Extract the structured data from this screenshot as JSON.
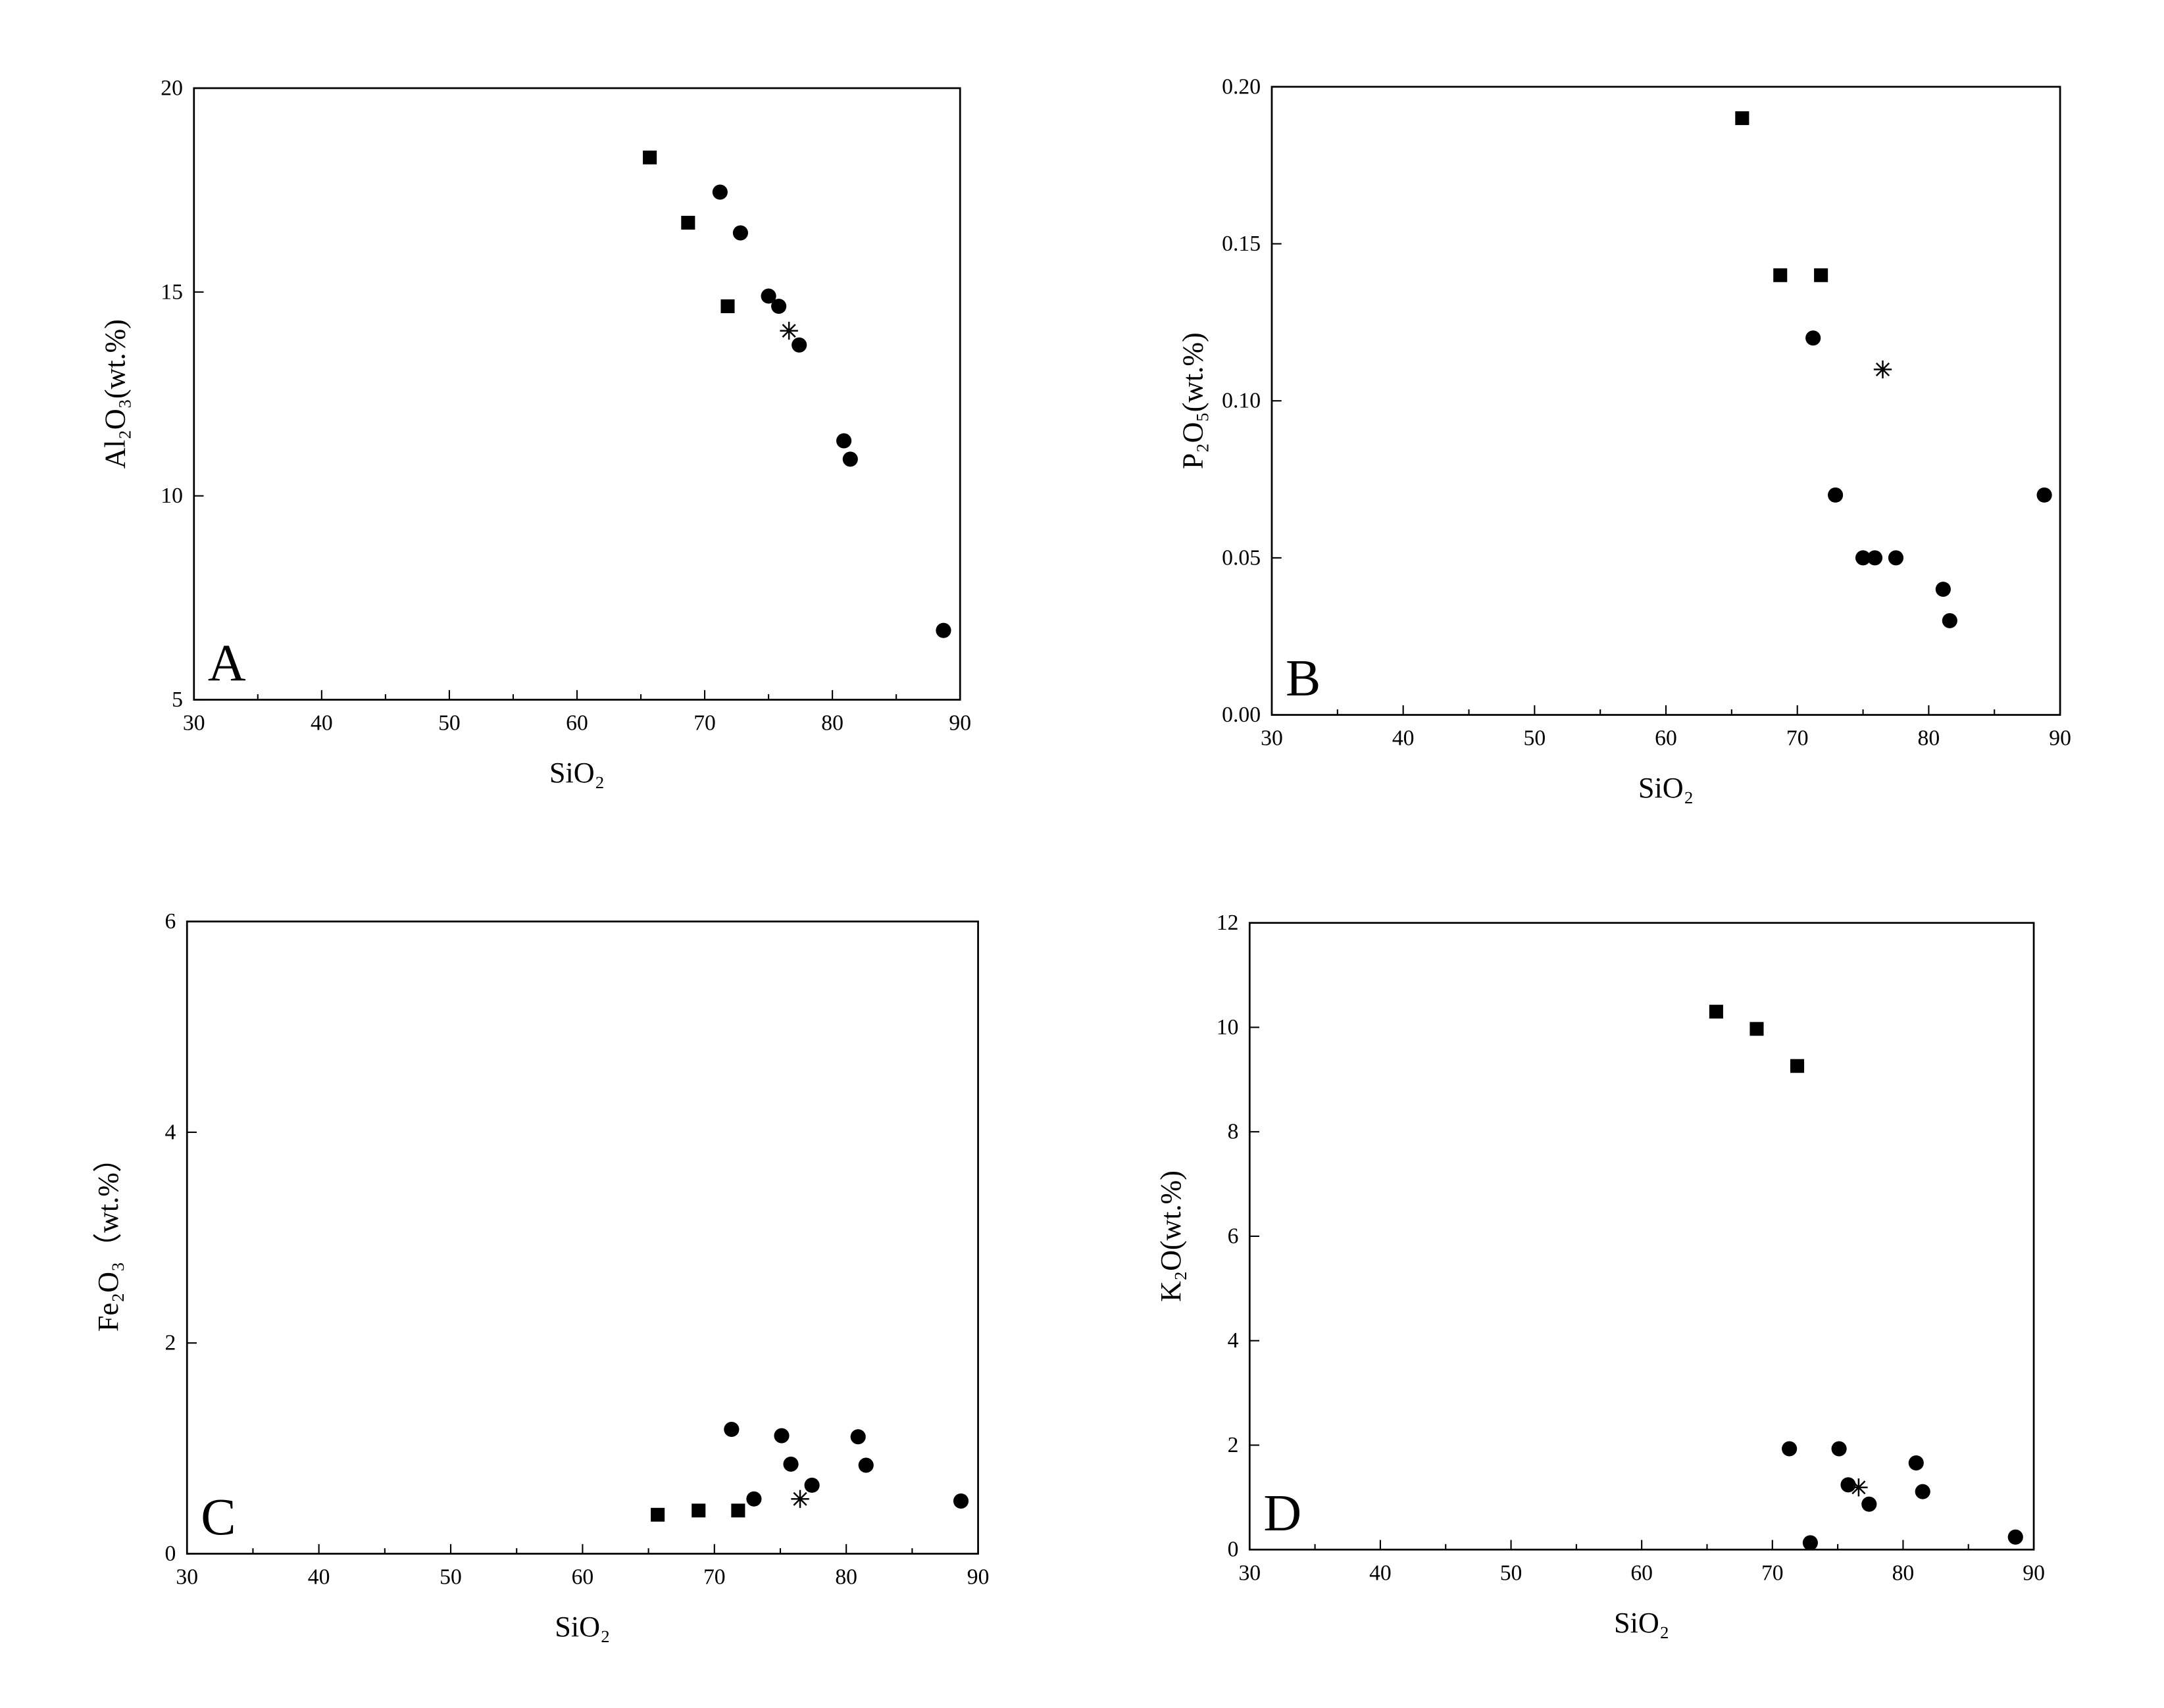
{
  "chart_data": [
    {
      "type": "scatter",
      "annotation": "A",
      "x_label": "SiO₂",
      "y_label": "Al₂O₃(wt.%)",
      "xlim": [
        30,
        90
      ],
      "xticks": [
        30,
        40,
        50,
        60,
        70,
        80,
        90
      ],
      "ylim": [
        5,
        20
      ],
      "yticks": [
        5,
        10,
        15,
        20
      ],
      "series": [
        {
          "marker": "square",
          "color": "#000000",
          "x": [
            65.7,
            68.7,
            71.8
          ],
          "values": [
            18.3,
            16.7,
            14.65
          ]
        },
        {
          "marker": "circle",
          "color": "#000000",
          "x": [
            71.2,
            72.8,
            75.0,
            75.8,
            77.4,
            80.9,
            81.4,
            88.7
          ],
          "values": [
            17.45,
            16.45,
            14.9,
            14.65,
            13.7,
            11.35,
            10.9,
            6.7
          ]
        },
        {
          "marker": "asterisk",
          "color": "#000000",
          "x": [
            76.6
          ],
          "values": [
            14.05
          ]
        }
      ]
    },
    {
      "type": "scatter",
      "annotation": "B",
      "x_label": "SiO₂",
      "y_label": "P₂O₅(wt.%)",
      "xlim": [
        30,
        90
      ],
      "xticks": [
        30,
        40,
        50,
        60,
        70,
        80,
        90
      ],
      "ylim": [
        0,
        0.2
      ],
      "yticks": [
        {
          "value": 0,
          "label": "0.00"
        },
        0.05,
        {
          "value": 0.1,
          "label": "0.10"
        },
        0.15,
        {
          "value": 0.2,
          "label": "0.20"
        }
      ],
      "series": [
        {
          "marker": "square",
          "color": "#000000",
          "x": [
            65.8,
            68.7,
            71.8
          ],
          "values": [
            0.19,
            0.14,
            0.14
          ]
        },
        {
          "marker": "circle",
          "color": "#000000",
          "x": [
            71.2,
            72.9,
            75.0,
            75.9,
            77.5,
            81.1,
            81.6,
            88.8
          ],
          "values": [
            0.12,
            0.07,
            0.05,
            0.05,
            0.05,
            0.04,
            0.03,
            0.07
          ]
        },
        {
          "marker": "asterisk",
          "color": "#000000",
          "x": [
            76.5
          ],
          "values": [
            0.11
          ]
        }
      ]
    },
    {
      "type": "scatter",
      "annotation": "C",
      "x_label": "SiO₂",
      "y_label": "Fe₂O₃（wt.%）",
      "xlim": [
        30,
        90
      ],
      "xticks": [
        30,
        40,
        50,
        60,
        70,
        80,
        90
      ],
      "ylim": [
        0,
        6
      ],
      "yticks": [
        0,
        2,
        4,
        6
      ],
      "series": [
        {
          "marker": "square",
          "color": "#000000",
          "x": [
            65.7,
            68.8,
            71.8
          ],
          "values": [
            0.37,
            0.41,
            0.41
          ]
        },
        {
          "marker": "circle",
          "color": "#000000",
          "x": [
            71.3,
            73.0,
            75.1,
            75.8,
            77.4,
            80.9,
            81.5,
            88.7
          ],
          "values": [
            1.18,
            0.52,
            1.12,
            0.85,
            0.65,
            1.11,
            0.84,
            0.5
          ]
        },
        {
          "marker": "asterisk",
          "color": "#000000",
          "x": [
            76.5
          ],
          "values": [
            0.52
          ]
        }
      ]
    },
    {
      "type": "scatter",
      "annotation": "D",
      "x_label": "SiO₂",
      "y_label": "K₂O(wt.%)",
      "xlim": [
        30,
        90
      ],
      "xticks": [
        30,
        40,
        50,
        60,
        70,
        80,
        90
      ],
      "ylim": [
        0,
        12
      ],
      "yticks": [
        0,
        2,
        4,
        6,
        8,
        10,
        12
      ],
      "series": [
        {
          "marker": "square",
          "color": "#000000",
          "x": [
            65.7,
            68.8,
            71.9
          ],
          "values": [
            10.3,
            9.97,
            9.26
          ]
        },
        {
          "marker": "circle",
          "color": "#000000",
          "x": [
            71.3,
            72.9,
            75.1,
            75.8,
            77.4,
            81.0,
            81.5,
            88.6
          ],
          "values": [
            1.93,
            0.13,
            1.93,
            1.24,
            0.87,
            1.66,
            1.11,
            0.24
          ]
        },
        {
          "marker": "asterisk",
          "color": "#000000",
          "x": [
            76.6
          ],
          "values": [
            1.19
          ]
        }
      ]
    }
  ]
}
